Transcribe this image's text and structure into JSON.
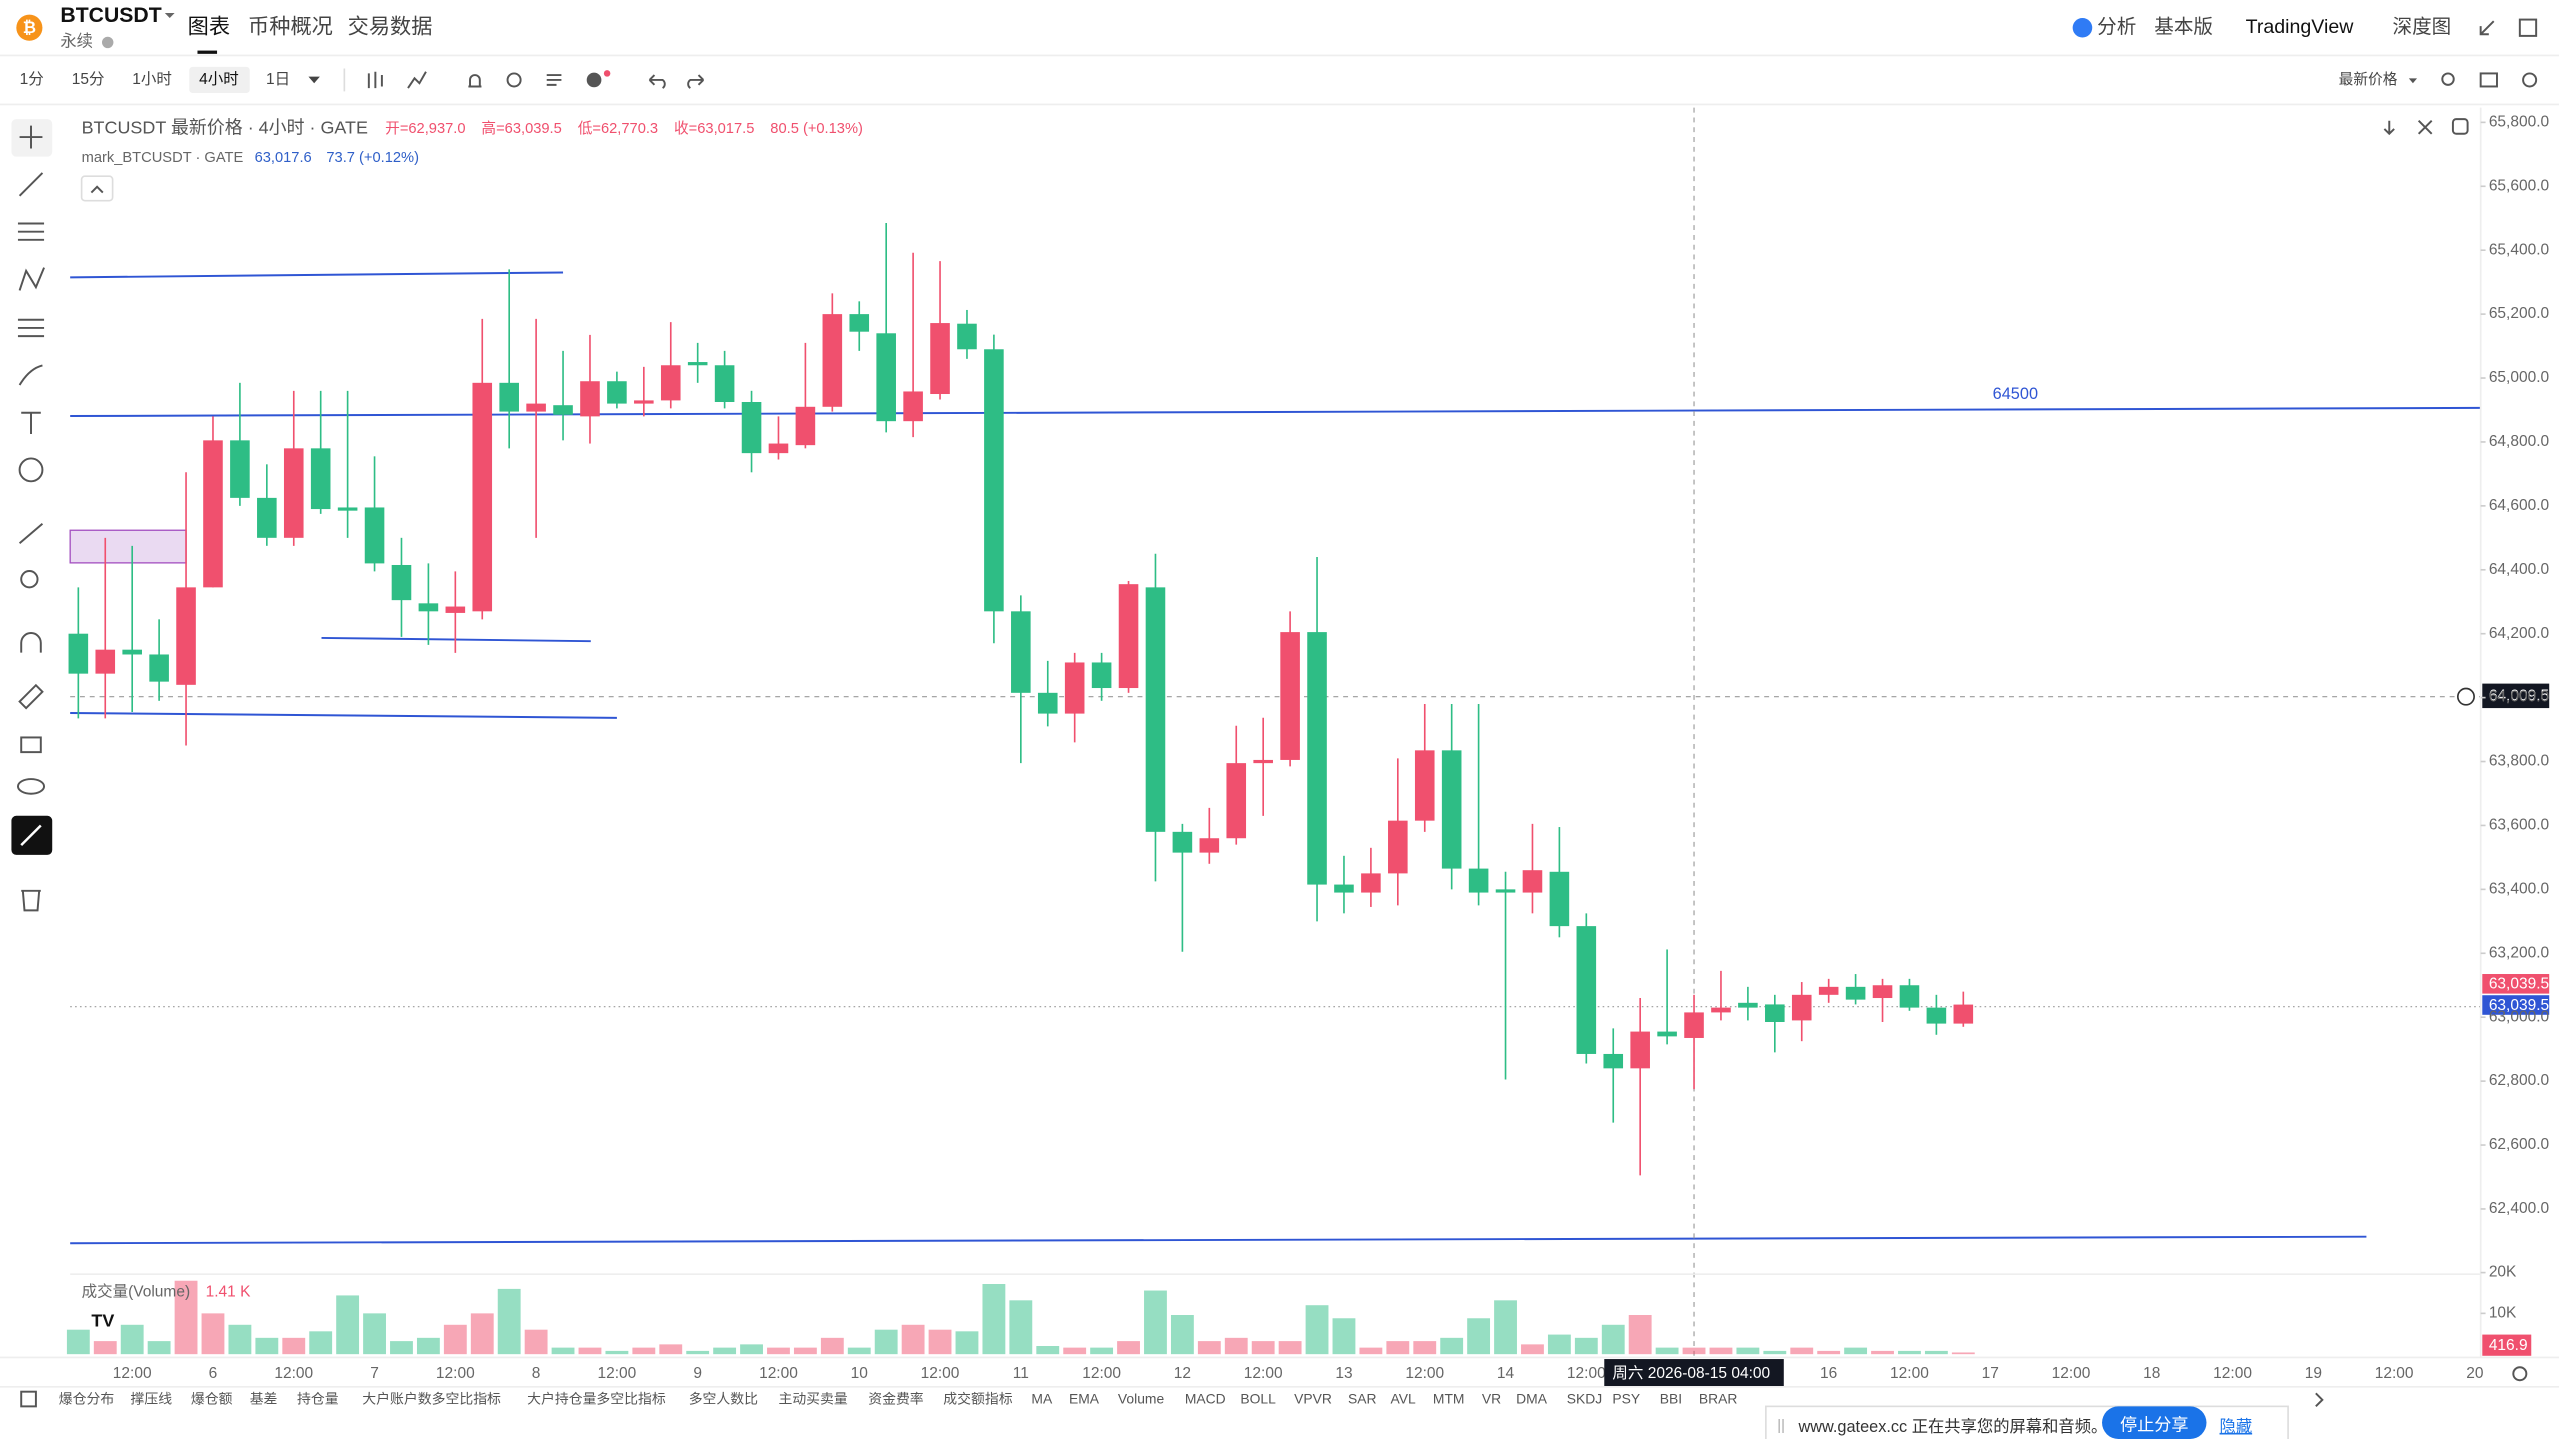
{
  "header": {
    "symbol": "BTCUSDT",
    "contract": "永续",
    "tabs": [
      "图表",
      "币种概况",
      "交易数据"
    ],
    "right": [
      "分析",
      "基本版",
      "TradingView",
      "深度图"
    ]
  },
  "toolbar": {
    "intervals": [
      "1分",
      "15分",
      "1小时",
      "4小时",
      "1日"
    ],
    "price_type": "最新价格"
  },
  "legend": {
    "main": "BTCUSDT 最新价格 · 4小时 · GATE",
    "open_label": "开=62,937.0",
    "high_label": "高=63,039.5",
    "low_label": "低=62,770.3",
    "close_label": "收=63,017.5",
    "change": "80.5 (+0.13%)",
    "mark": "mark_BTCUSDT · GATE",
    "mark_price": "63,017.6",
    "mark_change": "73.7 (+0.12%)",
    "volume_title": "成交量(Volume)",
    "volume_value": "1.41 K"
  },
  "chart_data": {
    "type": "candlestick",
    "up_color": "#f0506e",
    "down_color": "#2ebd85",
    "candles": [
      [
        64200,
        64345,
        63935,
        64075
      ],
      [
        64075,
        64500,
        63935,
        64150
      ],
      [
        64150,
        64475,
        63955,
        64135
      ],
      [
        64135,
        64245,
        63990,
        64050
      ],
      [
        64040,
        64705,
        63850,
        64345
      ],
      [
        64345,
        64880,
        64345,
        64805
      ],
      [
        64805,
        64985,
        64600,
        64625
      ],
      [
        64625,
        64730,
        64475,
        64500
      ],
      [
        64500,
        64960,
        64475,
        64780
      ],
      [
        64780,
        64960,
        64575,
        64590
      ],
      [
        64595,
        64960,
        64500,
        64585
      ],
      [
        64595,
        64755,
        64395,
        64420
      ],
      [
        64415,
        64500,
        64190,
        64305
      ],
      [
        64295,
        64420,
        64165,
        64270
      ],
      [
        64265,
        64395,
        64140,
        64285
      ],
      [
        64270,
        65185,
        64245,
        64985
      ],
      [
        64985,
        65340,
        64780,
        64895
      ],
      [
        64895,
        65185,
        64500,
        64920
      ],
      [
        64915,
        65085,
        64805,
        64885
      ],
      [
        64880,
        65135,
        64795,
        64990
      ],
      [
        64990,
        65020,
        64905,
        64920
      ],
      [
        64920,
        65035,
        64880,
        64930
      ],
      [
        64930,
        65175,
        64905,
        65040
      ],
      [
        65050,
        65110,
        64985,
        65040
      ],
      [
        65040,
        65085,
        64905,
        64925
      ],
      [
        64925,
        64960,
        64705,
        64765
      ],
      [
        64765,
        64880,
        64745,
        64795
      ],
      [
        64790,
        65110,
        64780,
        64910
      ],
      [
        64910,
        65265,
        64895,
        65200
      ],
      [
        65200,
        65240,
        65085,
        65145
      ],
      [
        65140,
        65485,
        64830,
        64865
      ],
      [
        64865,
        65392,
        64815,
        64958
      ],
      [
        64950,
        65366,
        64933,
        65172
      ],
      [
        65170,
        65213,
        65060,
        65090
      ],
      [
        65090,
        65136,
        64170,
        64270
      ],
      [
        64270,
        64320,
        63795,
        64015
      ],
      [
        64015,
        64115,
        63910,
        63950
      ],
      [
        63950,
        64140,
        63860,
        64110
      ],
      [
        64110,
        64140,
        63990,
        64030
      ],
      [
        64030,
        64365,
        64015,
        64355
      ],
      [
        64345,
        64450,
        63425,
        63580
      ],
      [
        63580,
        63605,
        63205,
        63515
      ],
      [
        63515,
        63655,
        63480,
        63560
      ],
      [
        63560,
        63912,
        63540,
        63795
      ],
      [
        63795,
        63937,
        63630,
        63805
      ],
      [
        63805,
        64270,
        63785,
        64205
      ],
      [
        64205,
        64440,
        63300,
        63415
      ],
      [
        63415,
        63505,
        63325,
        63390
      ],
      [
        63390,
        63530,
        63345,
        63450
      ],
      [
        63450,
        63810,
        63350,
        63615
      ],
      [
        63615,
        63980,
        63580,
        63835
      ],
      [
        63835,
        63980,
        63400,
        63465
      ],
      [
        63465,
        63980,
        63350,
        63390
      ],
      [
        63400,
        63455,
        62805,
        63390
      ],
      [
        63390,
        63605,
        63325,
        63460
      ],
      [
        63455,
        63595,
        63250,
        63285
      ],
      [
        63285,
        63325,
        62855,
        62885
      ],
      [
        62885,
        62965,
        62670,
        62840
      ],
      [
        62840,
        63060,
        62505,
        62955
      ],
      [
        62955,
        63212,
        62915,
        62940
      ],
      [
        62935,
        63070,
        62775,
        63015
      ],
      [
        63015,
        63145,
        62990,
        63030
      ],
      [
        63045,
        63095,
        62990,
        63030
      ],
      [
        63040,
        63070,
        62890,
        62985
      ],
      [
        62990,
        63110,
        62925,
        63070
      ],
      [
        63070,
        63120,
        63045,
        63095
      ],
      [
        63095,
        63135,
        63040,
        63055
      ],
      [
        63060,
        63120,
        62985,
        63100
      ],
      [
        63100,
        63120,
        63020,
        63030
      ],
      [
        63030,
        63070,
        62945,
        62980
      ],
      [
        62980,
        63080,
        62970,
        63039.5
      ]
    ],
    "volume": [
      6000,
      3200,
      7200,
      3200,
      18000,
      10000,
      7200,
      4000,
      4000,
      5600,
      14400,
      10000,
      3200,
      4000,
      7200,
      10000,
      16000,
      6000,
      1600,
      1600,
      800,
      1600,
      2400,
      800,
      1600,
      2400,
      1600,
      1600,
      4000,
      1600,
      6000,
      7200,
      6000,
      5600,
      17200,
      13200,
      2000,
      1600,
      1600,
      3200,
      15600,
      9600,
      3200,
      4000,
      3200,
      3200,
      12000,
      8800,
      1600,
      3200,
      3200,
      4000,
      8800,
      13200,
      2400,
      4800,
      4000,
      7200,
      9600,
      1600,
      1600,
      1600,
      1600,
      800,
      1600,
      800,
      1600,
      800,
      800,
      800,
      416.9
    ],
    "ylim": [
      62400,
      65800
    ],
    "yticks": [
      {
        "value": 65800,
        "label": "65,800.0"
      },
      {
        "value": 65600,
        "label": "65,600.0"
      },
      {
        "value": 65400,
        "label": "65,400.0"
      },
      {
        "value": 65200,
        "label": "65,200.0"
      },
      {
        "value": 65000,
        "label": "65,000.0"
      },
      {
        "value": 64800,
        "label": "64,800.0"
      },
      {
        "value": 64600,
        "label": "64,600.0"
      },
      {
        "value": 64400,
        "label": "64,400.0"
      },
      {
        "value": 64200,
        "label": "64,200.0"
      },
      {
        "value": 64000,
        "label": "64,000.0"
      },
      {
        "value": 63800,
        "label": "63,800.0"
      },
      {
        "value": 63600,
        "label": "63,600.0"
      },
      {
        "value": 63400,
        "label": "63,400.0"
      },
      {
        "value": 63200,
        "label": "63,200.0"
      },
      {
        "value": 63000,
        "label": "63,000.0"
      },
      {
        "value": 62800,
        "label": "62,800.0"
      },
      {
        "value": 62600,
        "label": "62,600.0"
      },
      {
        "value": 62400,
        "label": "62,400.0"
      }
    ],
    "y2lim": [
      0,
      20000
    ],
    "y2ticks": [
      {
        "value": 10000,
        "label": "10K"
      },
      {
        "value": 20000,
        "label": "20K"
      }
    ],
    "time_labels": [
      "12:00",
      "6",
      "12:00",
      "7",
      "12:00",
      "8",
      "12:00",
      "9",
      "12:00",
      "10",
      "12:00",
      "11",
      "12:00",
      "12",
      "12:00",
      "13",
      "12:00",
      "14",
      "12:00",
      null,
      "12:00",
      "16",
      "12:00",
      "17",
      "12:00",
      "18",
      "12:00",
      "19",
      "12:00",
      "20"
    ],
    "drawing_label": "64500",
    "crosshair_price": "64,009.5",
    "crosshair_time": "周六 2026-08-15 04:00",
    "last_price_label": "63,039.5",
    "mark_price_label": "63,039.5",
    "last_volume_label": "416.9"
  },
  "indicators": [
    "爆仓分布",
    "撑压线",
    "爆仓额",
    "基差",
    "持仓量",
    "大户账户数多空比指标",
    "大户持仓量多空比指标",
    "多空人数比",
    "主动买卖量",
    "资金费率",
    "成交额指标",
    "MA",
    "EMA",
    "Volume",
    "MACD",
    "BOLL",
    "VPVR",
    "SAR",
    "AVL",
    "MTM",
    "VR",
    "DMA",
    "SKDJ",
    "PSY",
    "BBI",
    "BRAR"
  ],
  "share_banner": {
    "text": "www.gateex.cc 正在共享您的屏幕和音频。",
    "stop": "停止分享",
    "hide": "隐藏"
  }
}
